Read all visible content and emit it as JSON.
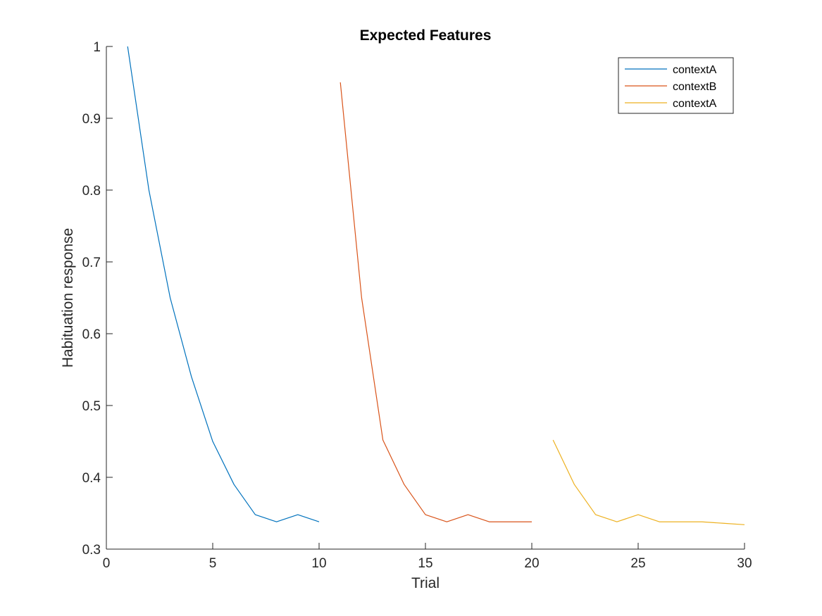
{
  "chart_data": {
    "type": "line",
    "title": "Expected Features",
    "xlabel": "Trial",
    "ylabel": "Habituation response",
    "xlim": [
      0,
      30
    ],
    "ylim": [
      0.3,
      1
    ],
    "xticks": [
      0,
      5,
      10,
      15,
      20,
      25,
      30
    ],
    "yticks": [
      0.3,
      0.4,
      0.5,
      0.6,
      0.7,
      0.8,
      0.9,
      1
    ],
    "ytick_labels": [
      "0.3",
      "0.4",
      "0.5",
      "0.6",
      "0.7",
      "0.8",
      "0.9",
      "1"
    ],
    "grid": false,
    "legend_position": "top-right",
    "series": [
      {
        "name": "contextA",
        "color": "#0072BD",
        "x": [
          1,
          2,
          3,
          4,
          5,
          6,
          7,
          8,
          9,
          10
        ],
        "y": [
          1.0,
          0.8,
          0.65,
          0.54,
          0.45,
          0.39,
          0.348,
          0.338,
          0.348,
          0.338
        ]
      },
      {
        "name": "contextB",
        "color": "#D95319",
        "x": [
          11,
          12,
          13,
          14,
          15,
          16,
          17,
          18,
          19,
          20
        ],
        "y": [
          0.95,
          0.65,
          0.452,
          0.39,
          0.348,
          0.338,
          0.348,
          0.338,
          0.338,
          0.338
        ]
      },
      {
        "name": "contextA",
        "color": "#EDB120",
        "x": [
          21,
          22,
          23,
          24,
          25,
          26,
          27,
          28,
          29,
          30
        ],
        "y": [
          0.452,
          0.39,
          0.348,
          0.338,
          0.348,
          0.338,
          0.338,
          0.338,
          0.336,
          0.334
        ]
      }
    ]
  }
}
